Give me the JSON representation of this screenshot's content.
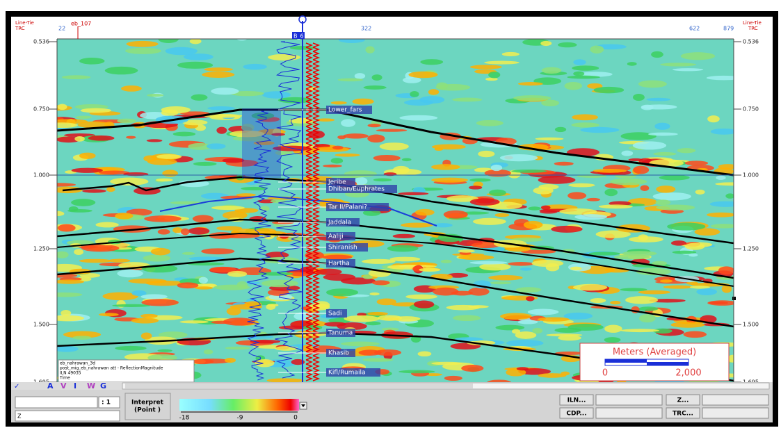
{
  "header": {
    "left_line_tie": "Line-Tie",
    "left_trc": "TRC",
    "right_line_tie": "Line-Tie",
    "right_trc": "TRC",
    "trc_labels": [
      "22",
      "eb_107",
      "322",
      "622",
      "879"
    ],
    "well": "B_6"
  },
  "time_axis": {
    "left": [
      "0.536",
      "0.750",
      "1.000",
      "1.250",
      "1.500",
      "1.695"
    ],
    "right": [
      "0.536",
      "0.750",
      "1.000",
      "1.250",
      "1.500",
      "1.695"
    ]
  },
  "horizons": [
    "Lower_fars",
    "Jeribe",
    "Dhiban/Euphrates",
    "Tar II/Palani?",
    "Jaddala",
    "Aaliji",
    "Shiranish",
    "Hartha",
    "Sadi",
    "Tanuma",
    "Khasib",
    "Kifl/Rumaila"
  ],
  "scale_bar": {
    "title": "Meters (Averaged)",
    "min": "0",
    "max": "2,000"
  },
  "info": [
    "eb_nahrawan_3d",
    "post_mig_eb_nahrawan att - ReflectionMagnitude",
    "ILN 49035",
    "Time"
  ],
  "toolbar": [
    "A",
    "V",
    "I",
    "W",
    "G"
  ],
  "bottom": {
    "step": ": 1",
    "mode_line1": "Interpret",
    "mode_line2": "(Point )",
    "colorbar_ticks": [
      "-18",
      "-9",
      "0"
    ],
    "buttons": [
      "ILN...",
      "CDP...",
      "Z...",
      "TRC..."
    ],
    "z_field": "Z"
  }
}
